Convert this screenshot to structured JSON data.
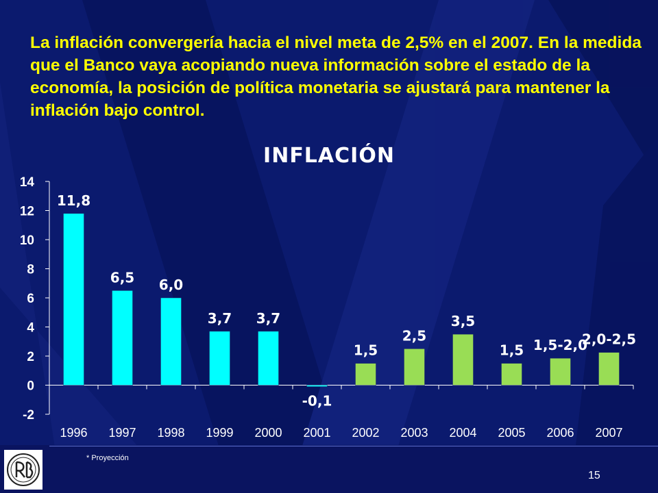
{
  "slide": {
    "headline": "La inflación convergería hacia el nivel meta de 2,5% en el 2007. En la medida que el Banco vaya acopiando nueva información sobre el estado de la economía, la posición de política monetaria se ajustará para mantener la inflación bajo control.",
    "footnote": "* Proyección",
    "page_number": "15"
  },
  "colors": {
    "background": "#0b1a6e",
    "headline": "#ffff00",
    "actual_bar": "#00ffff",
    "projected_bar": "#99dd55",
    "text": "#ffffff"
  },
  "chart_data": {
    "type": "bar",
    "title": "INFLACIÓN",
    "xlabel": "",
    "ylabel": "",
    "ylim": [
      -2,
      14
    ],
    "yticks": [
      -2,
      0,
      2,
      4,
      6,
      8,
      10,
      12,
      14
    ],
    "grid": false,
    "categories": [
      "1996",
      "1997",
      "1998",
      "1999",
      "2000",
      "2001",
      "2002",
      "2003",
      "2004",
      "2005",
      "2006",
      "2007"
    ],
    "values": [
      11.8,
      6.5,
      6.0,
      3.7,
      3.7,
      -0.1,
      1.5,
      2.5,
      3.5,
      1.5,
      1.85,
      2.25
    ],
    "data_labels": [
      "11,8",
      "6,5",
      "6,0",
      "3,7",
      "3,7",
      "-0,1",
      "1,5",
      "2,5",
      "3,5",
      "1,5",
      "1,5-2,0",
      "2,0-2,5"
    ],
    "bar_groups": [
      "actual",
      "actual",
      "actual",
      "actual",
      "actual",
      "actual",
      "projected",
      "projected",
      "projected",
      "projected",
      "projected",
      "projected"
    ]
  }
}
